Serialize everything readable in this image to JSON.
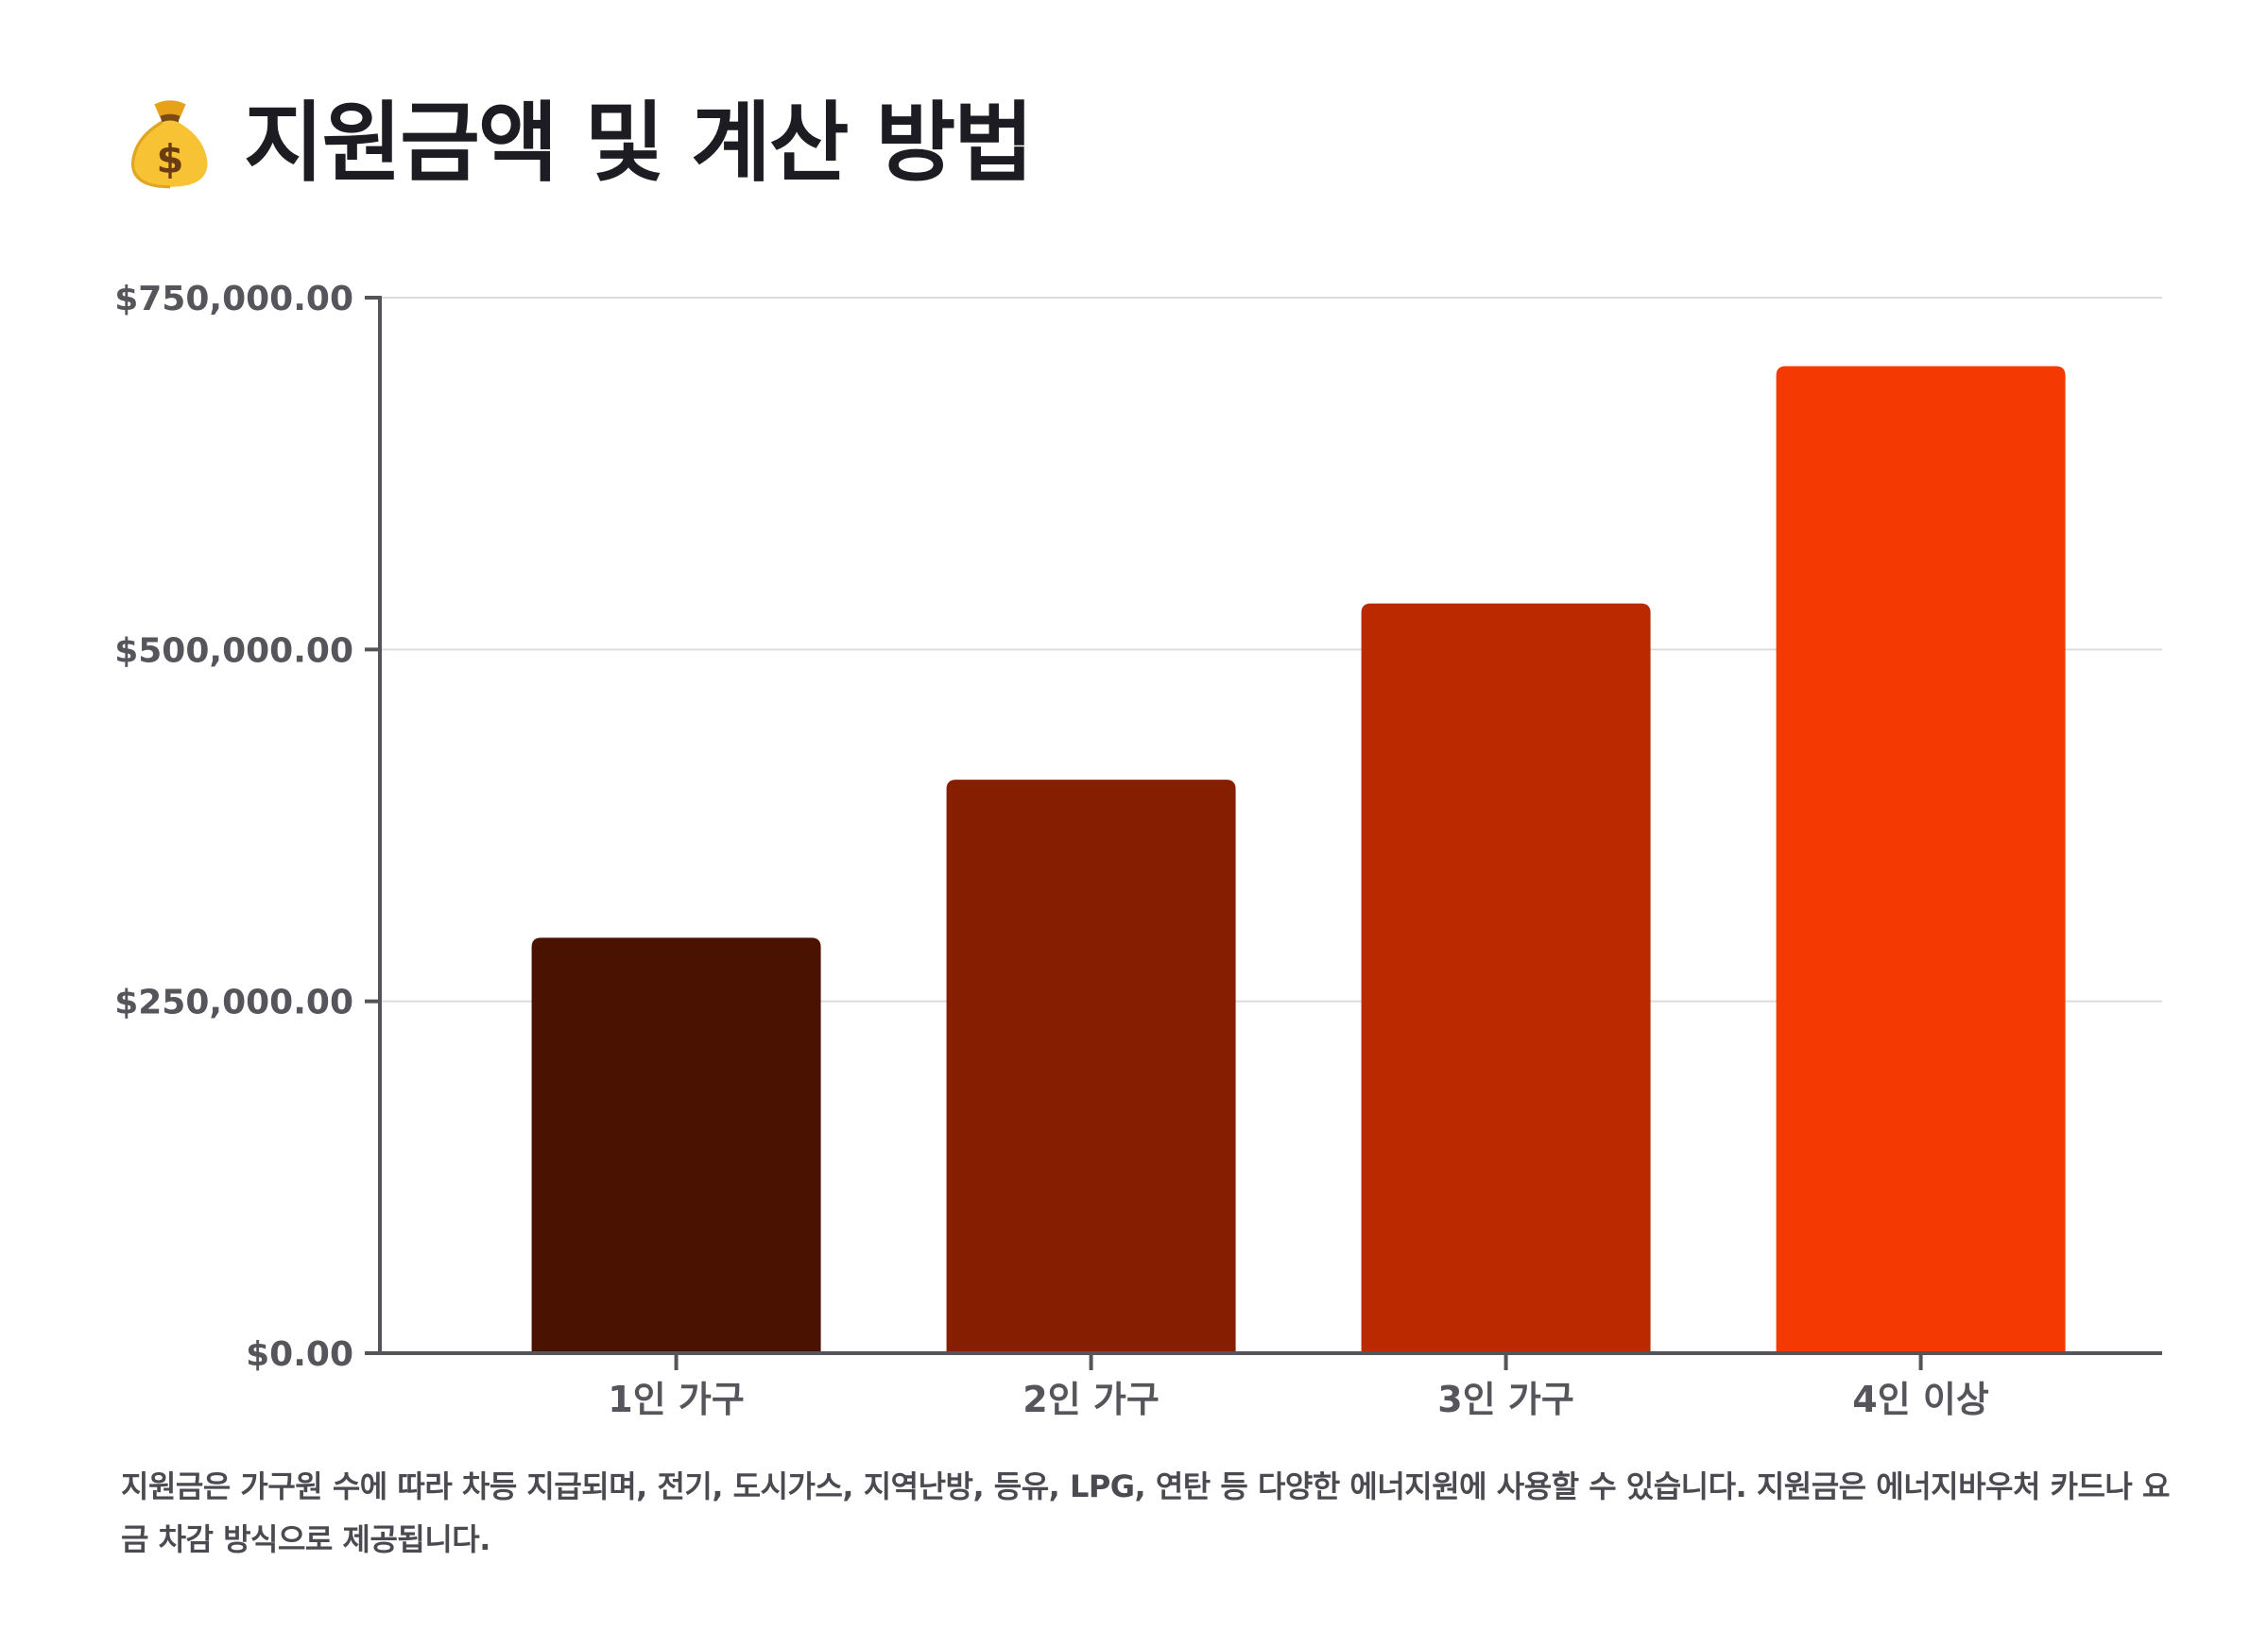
{
  "title": "지원금액 및 계산 방법",
  "title_icon": "money-bag-icon",
  "chart_data": {
    "type": "bar",
    "title": "지원금액 및 계산 방법",
    "categories": [
      "1인 가구",
      "2인 가구",
      "3인 가구",
      "4인 이상"
    ],
    "values": [
      295200,
      407500,
      532700,
      701300
    ],
    "colors": [
      "#4a1200",
      "#861f02",
      "#bb2901",
      "#f43a02"
    ],
    "xlabel": "",
    "ylabel": "",
    "ylim": [
      0,
      750000
    ],
    "yticks": [
      {
        "value": 0,
        "label": "$0.00"
      },
      {
        "value": 250000,
        "label": "$250,000.00"
      },
      {
        "value": 500000,
        "label": "$500,000.00"
      },
      {
        "value": 750000,
        "label": "$750,000.00"
      }
    ],
    "grid": true,
    "legend": "none"
  },
  "footnote": "지원금은 가구원 수에 따라 차등 지급되며, 전기, 도시가스, 지역난방, 등유, LPG, 연탄 등 다양한 에너지원에 사용할 수 있습니다. 지원금은 에너지바우처 카드나 요금 차감 방식으로 제공됩니다."
}
